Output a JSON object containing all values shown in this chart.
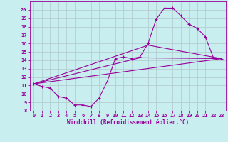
{
  "xlabel": "Windchill (Refroidissement éolien,°C)",
  "background_color": "#c8eef0",
  "line_color": "#990099",
  "grid_color": "#b0c8cc",
  "xlim": [
    -0.5,
    23.5
  ],
  "ylim": [
    8,
    21
  ],
  "xticks": [
    0,
    1,
    2,
    3,
    4,
    5,
    6,
    7,
    8,
    9,
    10,
    11,
    12,
    13,
    14,
    15,
    16,
    17,
    18,
    19,
    20,
    21,
    22,
    23
  ],
  "yticks": [
    8,
    9,
    10,
    11,
    12,
    13,
    14,
    15,
    16,
    17,
    18,
    19,
    20
  ],
  "series1_x": [
    0,
    1,
    2,
    3,
    4,
    5,
    6,
    7,
    8,
    9,
    10,
    11,
    12,
    13,
    14,
    15,
    16,
    17,
    18,
    19,
    20,
    21,
    22,
    23
  ],
  "series1_y": [
    11.2,
    10.9,
    10.7,
    9.7,
    9.5,
    8.7,
    8.7,
    8.5,
    9.5,
    11.5,
    14.2,
    14.4,
    14.2,
    14.4,
    16.0,
    18.9,
    20.2,
    20.2,
    19.3,
    18.3,
    17.8,
    16.8,
    14.3,
    14.2
  ],
  "series2_x": [
    0,
    23
  ],
  "series2_y": [
    11.2,
    14.2
  ],
  "series3_x": [
    0,
    13,
    23
  ],
  "series3_y": [
    11.2,
    14.3,
    14.2
  ],
  "series4_x": [
    0,
    14,
    23
  ],
  "series4_y": [
    11.2,
    15.8,
    14.2
  ]
}
